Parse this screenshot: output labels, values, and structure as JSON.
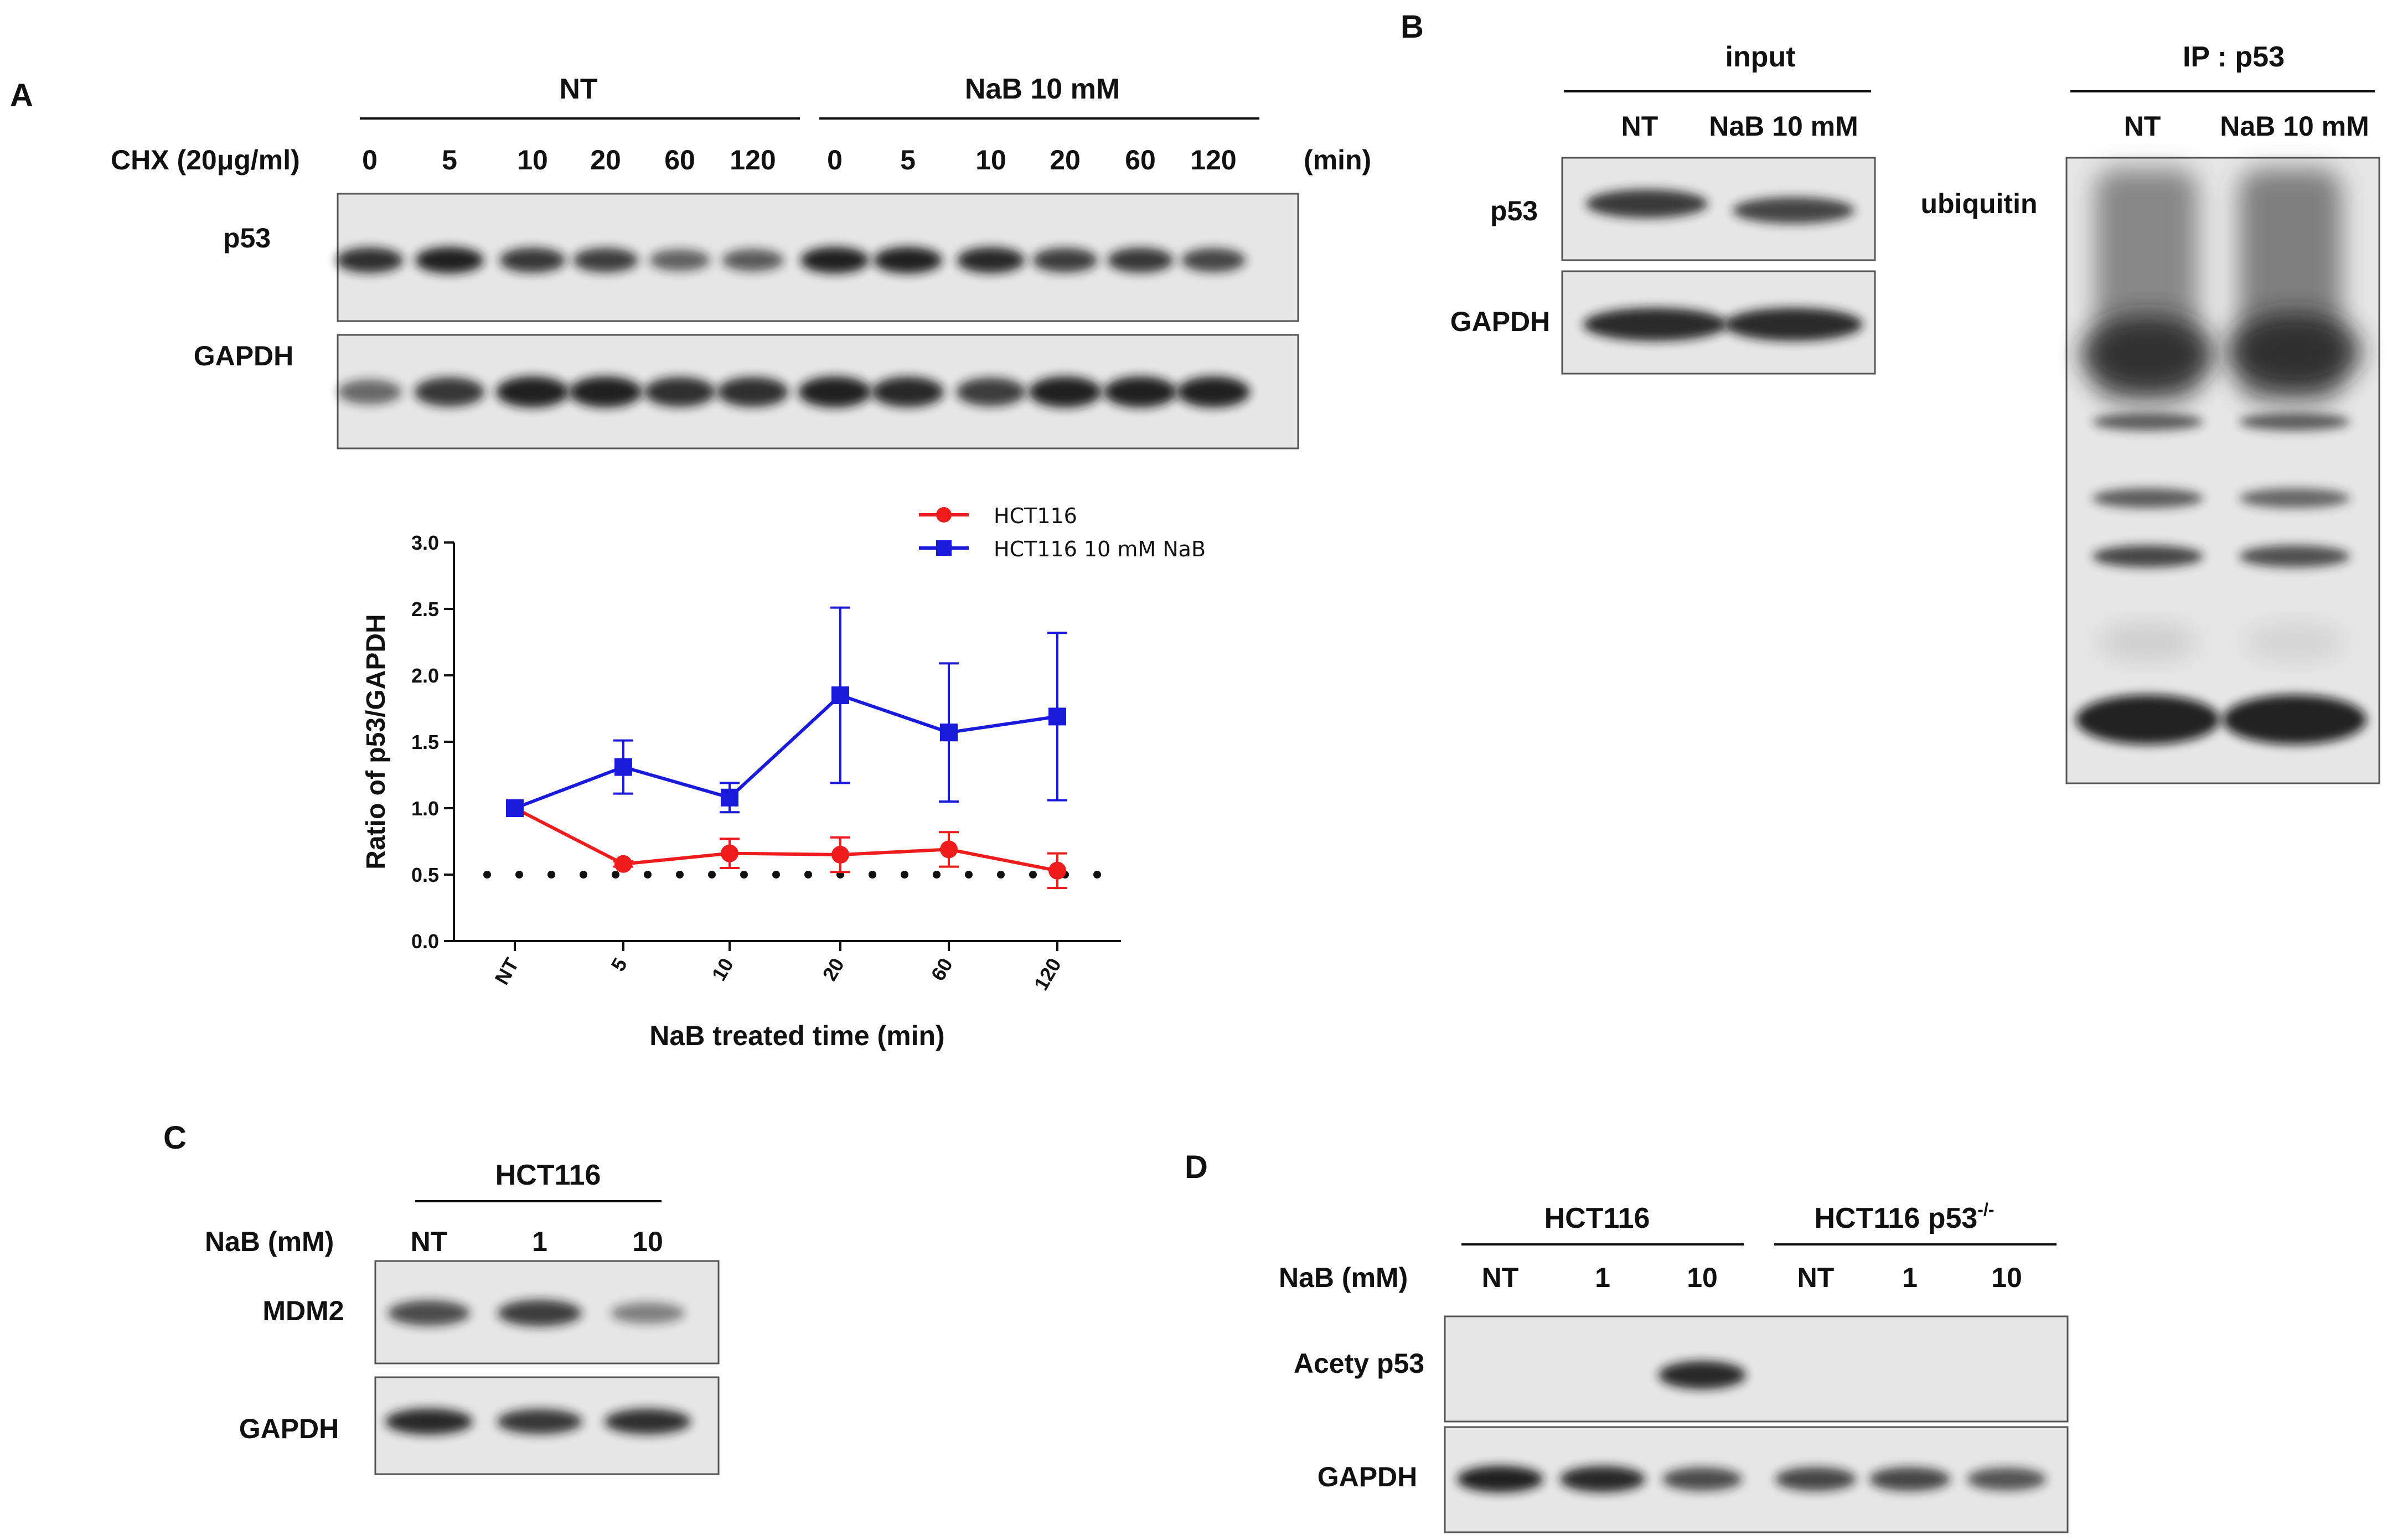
{
  "panels": {
    "A": {
      "letter": "A",
      "groups": [
        "NT",
        "NaB 10 mM"
      ],
      "treatment_label": "CHX (20μg/ml)",
      "timepoints": [
        "0",
        "5",
        "10",
        "20",
        "60",
        "120",
        "0",
        "5",
        "10",
        "20",
        "60",
        "120"
      ],
      "unit_label": "(min)",
      "rows": [
        "p53",
        "GAPDH"
      ],
      "band_intensity": {
        "p53": [
          0.9,
          1.0,
          0.85,
          0.8,
          0.55,
          0.6,
          1.0,
          1.0,
          0.95,
          0.8,
          0.85,
          0.75
        ],
        "GAPDH": [
          0.5,
          0.85,
          1.0,
          1.0,
          0.9,
          0.9,
          1.0,
          0.95,
          0.8,
          1.0,
          1.0,
          1.0
        ]
      }
    },
    "B": {
      "letter": "B",
      "input_title": "input",
      "input_lanes": [
        "NT",
        "NaB 10 mM"
      ],
      "input_rows": [
        "p53",
        "GAPDH"
      ],
      "ip_title": "IP : p53",
      "ip_lanes": [
        "NT",
        "NaB 10 mM"
      ],
      "ip_row": "ubiquitin"
    },
    "C": {
      "letter": "C",
      "group": "HCT116",
      "treatment_label": "NaB (mM)",
      "lanes": [
        "NT",
        "1",
        "10"
      ],
      "rows": [
        "MDM2",
        "GAPDH"
      ],
      "band_intensity": {
        "MDM2": [
          0.7,
          0.8,
          0.35
        ],
        "GAPDH": [
          0.95,
          0.85,
          0.9
        ]
      }
    },
    "D": {
      "letter": "D",
      "groups": [
        "HCT116",
        "HCT116 p53"
      ],
      "group2_superscript": "-/-",
      "treatment_label": "NaB (mM)",
      "lanes": [
        "NT",
        "1",
        "10",
        "NT",
        "1",
        "10"
      ],
      "rows": [
        "Acety p53",
        "GAPDH"
      ],
      "band_intensity": {
        "Acety p53": [
          0,
          0,
          0.95,
          0,
          0,
          0
        ],
        "GAPDH": [
          1.0,
          0.95,
          0.7,
          0.75,
          0.75,
          0.65
        ]
      }
    }
  },
  "chart_data": {
    "type": "line",
    "categories": [
      "NT",
      "5",
      "10",
      "20",
      "60",
      "120"
    ],
    "xlabel": "NaB treated time (min)",
    "ylabel": "Ratio of p53/GAPDH",
    "ylim": [
      0,
      3.0
    ],
    "yticks": [
      "0.0",
      "0.5",
      "1.0",
      "1.5",
      "2.0",
      "2.5",
      "3.0"
    ],
    "reference_line": 0.5,
    "legend_position": "top-right",
    "series": [
      {
        "name": "HCT116",
        "color": "#ee1c1c",
        "marker": "circle",
        "values": [
          1.0,
          0.58,
          0.66,
          0.65,
          0.69,
          0.53
        ],
        "errors": [
          0,
          0.02,
          0.11,
          0.13,
          0.13,
          0.13
        ]
      },
      {
        "name": "HCT116 10 mM NaB",
        "color": "#1a1adb",
        "marker": "square",
        "values": [
          1.0,
          1.31,
          1.08,
          1.85,
          1.57,
          1.69
        ],
        "errors": [
          0,
          0.2,
          0.11,
          0.66,
          0.52,
          0.63
        ]
      }
    ]
  }
}
